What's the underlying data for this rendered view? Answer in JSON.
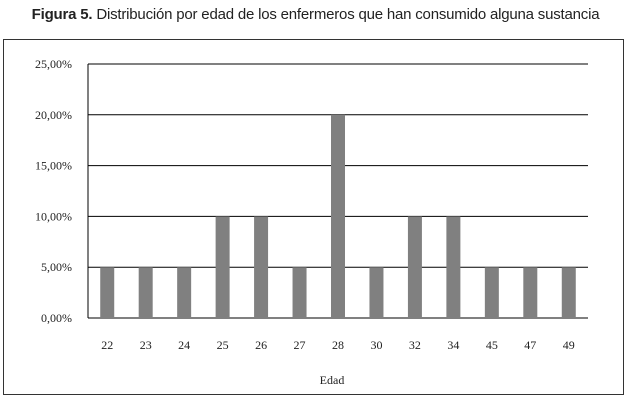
{
  "title": {
    "prefix": "Figura 5.",
    "text": "Distribución por edad de los enfermeros que han consumido alguna sustancia"
  },
  "colors": {
    "bar": "#808080",
    "grid": "#000000"
  },
  "chart_data": {
    "type": "bar",
    "categories": [
      "22",
      "23",
      "24",
      "25",
      "26",
      "27",
      "28",
      "30",
      "32",
      "34",
      "45",
      "47",
      "49"
    ],
    "values": [
      5,
      5,
      5,
      10,
      10,
      5,
      20,
      5,
      10,
      10,
      5,
      5,
      5
    ],
    "xlabel": "Edad",
    "ylabel": "",
    "ylim": [
      0,
      25
    ],
    "yticks": [
      0,
      5,
      10,
      15,
      20,
      25
    ],
    "ytick_labels": [
      "0,00%",
      "5,00%",
      "10,00%",
      "15,00%",
      "20,00%",
      "25,00%"
    ],
    "grid": true,
    "legend": "none"
  }
}
